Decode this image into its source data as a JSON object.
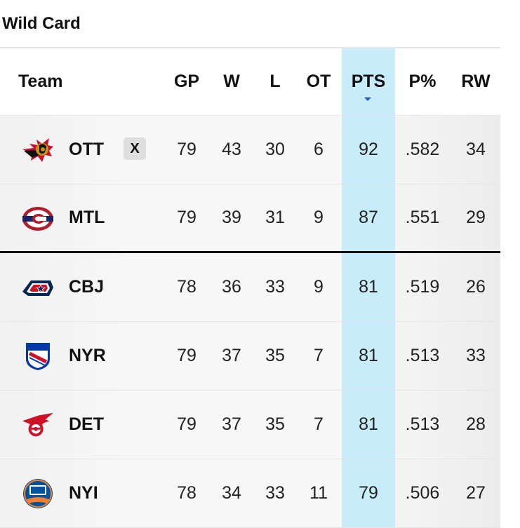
{
  "section_title": "Wild Card",
  "columns": {
    "team": "Team",
    "gp": "GP",
    "w": "W",
    "l": "L",
    "ot": "OT",
    "pts": "PTS",
    "pct": "P%",
    "rw": "RW"
  },
  "sorted_column": "PTS",
  "colors": {
    "pts_highlight": "#c9ecfb",
    "sort_indicator": "#1a56d6",
    "cutoff_line": "#111111"
  },
  "rows": [
    {
      "abbr": "OTT",
      "logo": "senators-logo-icon",
      "clinch": "X",
      "gp": "79",
      "w": "43",
      "l": "30",
      "ot": "6",
      "pts": "92",
      "pct": ".582",
      "rw": "34"
    },
    {
      "abbr": "MTL",
      "logo": "canadiens-logo-icon",
      "clinch": "",
      "gp": "79",
      "w": "39",
      "l": "31",
      "ot": "9",
      "pts": "87",
      "pct": ".551",
      "rw": "29"
    },
    {
      "abbr": "CBJ",
      "logo": "blue-jackets-logo-icon",
      "clinch": "",
      "gp": "78",
      "w": "36",
      "l": "33",
      "ot": "9",
      "pts": "81",
      "pct": ".519",
      "rw": "26"
    },
    {
      "abbr": "NYR",
      "logo": "rangers-logo-icon",
      "clinch": "",
      "gp": "79",
      "w": "37",
      "l": "35",
      "ot": "7",
      "pts": "81",
      "pct": ".513",
      "rw": "33"
    },
    {
      "abbr": "DET",
      "logo": "red-wings-logo-icon",
      "clinch": "",
      "gp": "79",
      "w": "37",
      "l": "35",
      "ot": "7",
      "pts": "81",
      "pct": ".513",
      "rw": "28"
    },
    {
      "abbr": "NYI",
      "logo": "islanders-logo-icon",
      "clinch": "",
      "gp": "78",
      "w": "34",
      "l": "33",
      "ot": "11",
      "pts": "79",
      "pct": ".506",
      "rw": "27"
    }
  ]
}
